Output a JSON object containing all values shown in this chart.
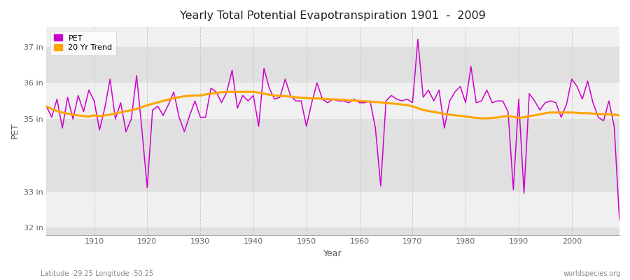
{
  "title": "Yearly Total Potential Evapotranspiration 1901  -  2009",
  "xlabel": "Year",
  "ylabel": "PET",
  "subtitle_left": "Latitude -29.25 Longitude -50.25",
  "watermark": "worldspecies.org",
  "pet_color": "#cc00cc",
  "trend_color": "#ffa500",
  "background_outer": "#ffffff",
  "background_inner": "#e8e8e8",
  "band_color_light": "#f0f0f0",
  "band_color_dark": "#e0e0e0",
  "ylim_min": 31.8,
  "ylim_max": 37.55,
  "ytick_values": [
    32,
    33,
    35,
    36,
    37
  ],
  "ytick_labels": [
    "32 in",
    "33 in",
    "35 in",
    "36 in",
    "37 in"
  ],
  "xlim_min": 1901,
  "xlim_max": 2009,
  "xtick_values": [
    1910,
    1920,
    1930,
    1940,
    1950,
    1960,
    1970,
    1980,
    1990,
    2000
  ],
  "years": [
    1901,
    1902,
    1903,
    1904,
    1905,
    1906,
    1907,
    1908,
    1909,
    1910,
    1911,
    1912,
    1913,
    1914,
    1915,
    1916,
    1917,
    1918,
    1919,
    1920,
    1921,
    1922,
    1923,
    1924,
    1925,
    1926,
    1927,
    1928,
    1929,
    1930,
    1931,
    1932,
    1933,
    1934,
    1935,
    1936,
    1937,
    1938,
    1939,
    1940,
    1941,
    1942,
    1943,
    1944,
    1945,
    1946,
    1947,
    1948,
    1949,
    1950,
    1951,
    1952,
    1953,
    1954,
    1955,
    1956,
    1957,
    1958,
    1959,
    1960,
    1961,
    1962,
    1963,
    1964,
    1965,
    1966,
    1967,
    1968,
    1969,
    1970,
    1971,
    1972,
    1973,
    1974,
    1975,
    1976,
    1977,
    1978,
    1979,
    1980,
    1981,
    1982,
    1983,
    1984,
    1985,
    1986,
    1987,
    1988,
    1989,
    1990,
    1991,
    1992,
    1993,
    1994,
    1995,
    1996,
    1997,
    1998,
    1999,
    2000,
    2001,
    2002,
    2003,
    2004,
    2005,
    2006,
    2007,
    2008,
    2009
  ],
  "pet_values": [
    35.35,
    35.05,
    35.55,
    34.75,
    35.6,
    35.0,
    35.65,
    35.2,
    35.8,
    35.5,
    34.7,
    35.3,
    36.1,
    35.0,
    35.45,
    34.65,
    35.0,
    36.2,
    34.7,
    33.1,
    35.25,
    35.35,
    35.1,
    35.4,
    35.75,
    35.05,
    34.65,
    35.1,
    35.5,
    35.05,
    35.05,
    35.85,
    35.75,
    35.45,
    35.75,
    36.35,
    35.3,
    35.65,
    35.5,
    35.65,
    34.8,
    36.4,
    35.85,
    35.55,
    35.6,
    36.1,
    35.65,
    35.5,
    35.5,
    34.8,
    35.45,
    36.0,
    35.55,
    35.45,
    35.55,
    35.5,
    35.5,
    35.45,
    35.55,
    35.45,
    35.45,
    35.5,
    34.75,
    33.15,
    35.5,
    35.65,
    35.55,
    35.5,
    35.55,
    35.45,
    37.2,
    35.6,
    35.8,
    35.5,
    35.8,
    34.75,
    35.5,
    35.75,
    35.9,
    35.45,
    36.45,
    35.45,
    35.5,
    35.8,
    35.45,
    35.5,
    35.5,
    35.2,
    33.05,
    35.55,
    32.95,
    35.7,
    35.5,
    35.25,
    35.45,
    35.5,
    35.45,
    35.05,
    35.4,
    36.1,
    35.9,
    35.55,
    36.05,
    35.45,
    35.05,
    34.95,
    35.5,
    34.8,
    32.2
  ],
  "trend_values": [
    35.35,
    35.28,
    35.22,
    35.18,
    35.15,
    35.12,
    35.1,
    35.08,
    35.07,
    35.1,
    35.08,
    35.1,
    35.12,
    35.16,
    35.18,
    35.22,
    35.24,
    35.28,
    35.33,
    35.38,
    35.42,
    35.46,
    35.5,
    35.54,
    35.58,
    35.6,
    35.63,
    35.64,
    35.65,
    35.65,
    35.68,
    35.7,
    35.72,
    35.74,
    35.75,
    35.75,
    35.75,
    35.75,
    35.75,
    35.75,
    35.73,
    35.7,
    35.67,
    35.65,
    35.64,
    35.63,
    35.62,
    35.6,
    35.59,
    35.58,
    35.57,
    35.57,
    35.56,
    35.55,
    35.54,
    35.54,
    35.53,
    35.52,
    35.51,
    35.5,
    35.49,
    35.48,
    35.47,
    35.46,
    35.44,
    35.43,
    35.42,
    35.4,
    35.38,
    35.35,
    35.3,
    35.25,
    35.22,
    35.2,
    35.17,
    35.14,
    35.12,
    35.1,
    35.09,
    35.07,
    35.05,
    35.03,
    35.02,
    35.02,
    35.03,
    35.04,
    35.07,
    35.08,
    35.06,
    35.03,
    35.05,
    35.08,
    35.1,
    35.13,
    35.16,
    35.18,
    35.18,
    35.18,
    35.18,
    35.18,
    35.17,
    35.16,
    35.16,
    35.15,
    35.14,
    35.13,
    35.13,
    35.12,
    35.1
  ]
}
